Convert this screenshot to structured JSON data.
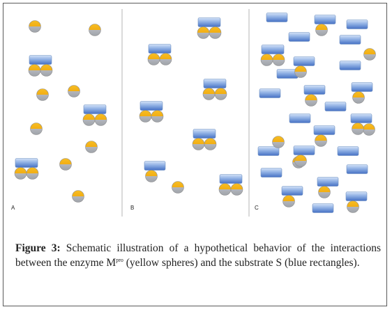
{
  "figure": {
    "panels": [
      {
        "id": "A",
        "label": "A"
      },
      {
        "id": "B",
        "label": "B"
      },
      {
        "id": "C",
        "label": "C"
      }
    ],
    "caption": {
      "figure_label": "Figure 3:",
      "text_before": "Schematic illustration of a hypothetical behavior of the interactions between the enzyme M",
      "superscript": "pro",
      "text_after": " (yellow spheres) and the substrate S (blue rectangles)."
    }
  },
  "colors": {
    "enzyme_top": "#f6b81a",
    "enzyme_bottom": "#a9adb4",
    "substrate_light": "#c9dbf5",
    "substrate_dark": "#4c7bc9",
    "divider": "#b5b5b5"
  }
}
